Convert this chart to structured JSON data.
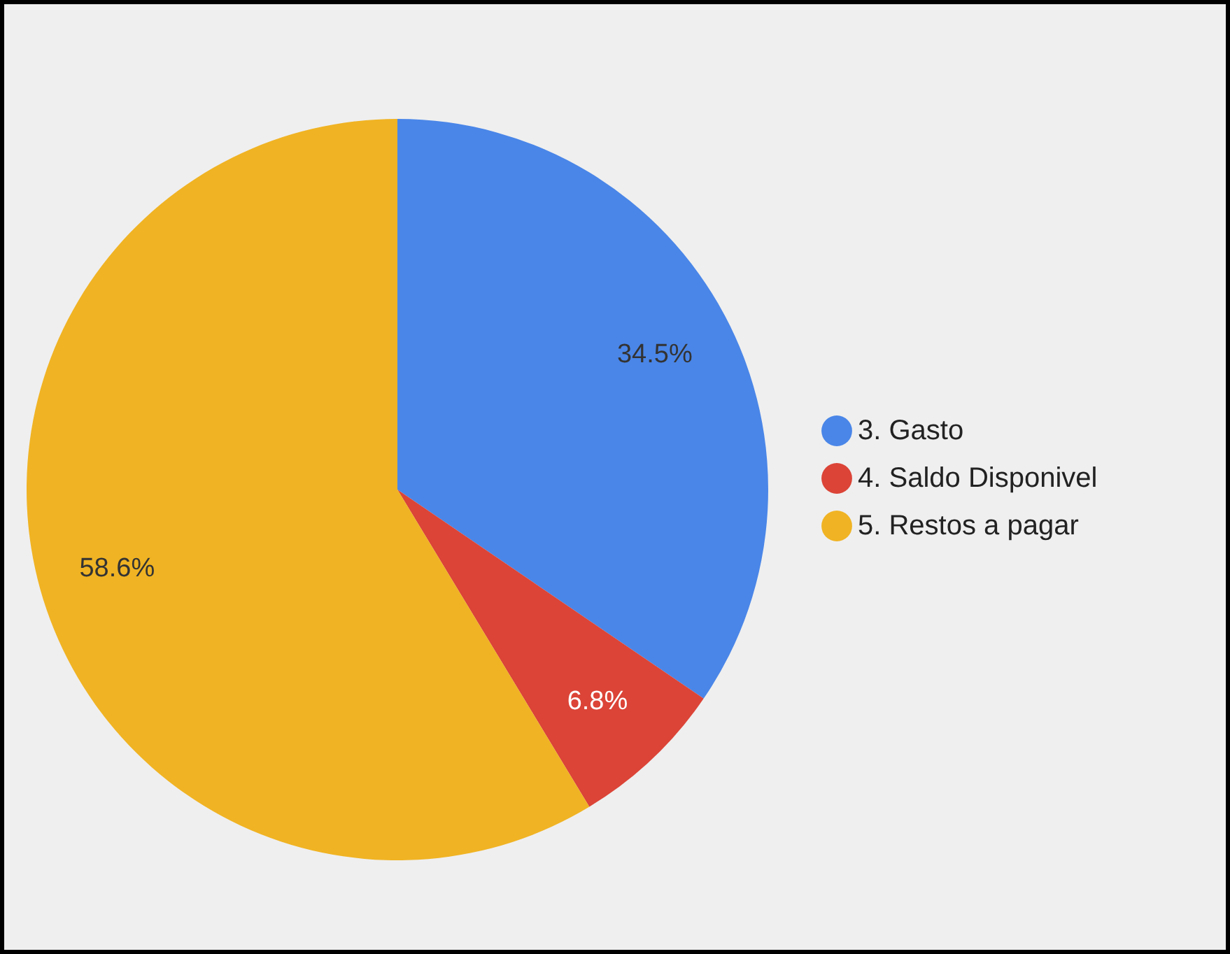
{
  "chart_data": {
    "type": "pie",
    "categories": [
      "3. Gasto",
      "4. Saldo Disponivel",
      "5. Restos a pagar"
    ],
    "values": [
      34.5,
      6.8,
      58.6
    ],
    "colors": [
      "#4a86e8",
      "#db4437",
      "#f0b323"
    ],
    "value_labels": [
      "34.5%",
      "6.8%",
      "58.6%"
    ],
    "legend": "right"
  }
}
